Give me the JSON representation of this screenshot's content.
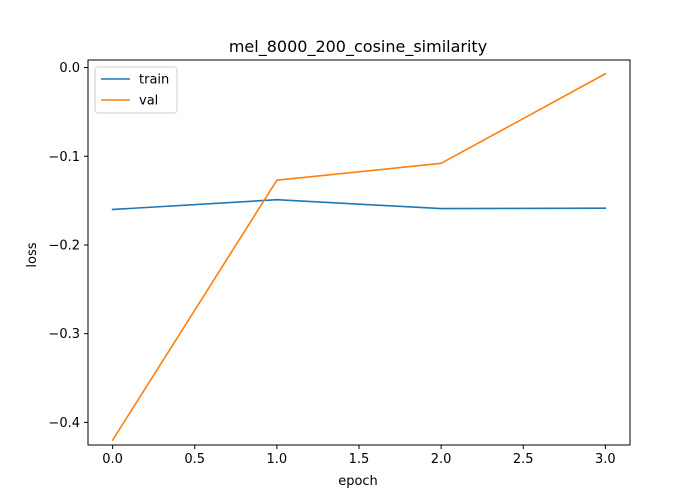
{
  "chart_data": {
    "type": "line",
    "title": "mel_8000_200_cosine_similarity",
    "xlabel": "epoch",
    "ylabel": "loss",
    "x": [
      0,
      1,
      2,
      3
    ],
    "xlim": [
      -0.15,
      3.15
    ],
    "ylim": [
      -0.4255,
      0.0085
    ],
    "xticks": [
      0.0,
      0.5,
      1.0,
      1.5,
      2.0,
      2.5,
      3.0
    ],
    "xtick_labels": [
      "0.0",
      "0.5",
      "1.0",
      "1.5",
      "2.0",
      "2.5",
      "3.0"
    ],
    "yticks": [
      0.0,
      -0.1,
      -0.2,
      -0.3,
      -0.4
    ],
    "ytick_labels": [
      "0.0",
      "−0.1",
      "−0.2",
      "−0.3",
      "−0.4"
    ],
    "grid": false,
    "legend_position": "top-left",
    "series": [
      {
        "name": "train",
        "color": "#1f77b4",
        "values": [
          -0.16,
          -0.149,
          -0.159,
          -0.1585
        ]
      },
      {
        "name": "val",
        "color": "#ff7f0e",
        "values": [
          -0.42,
          -0.127,
          -0.108,
          -0.007
        ]
      }
    ]
  }
}
